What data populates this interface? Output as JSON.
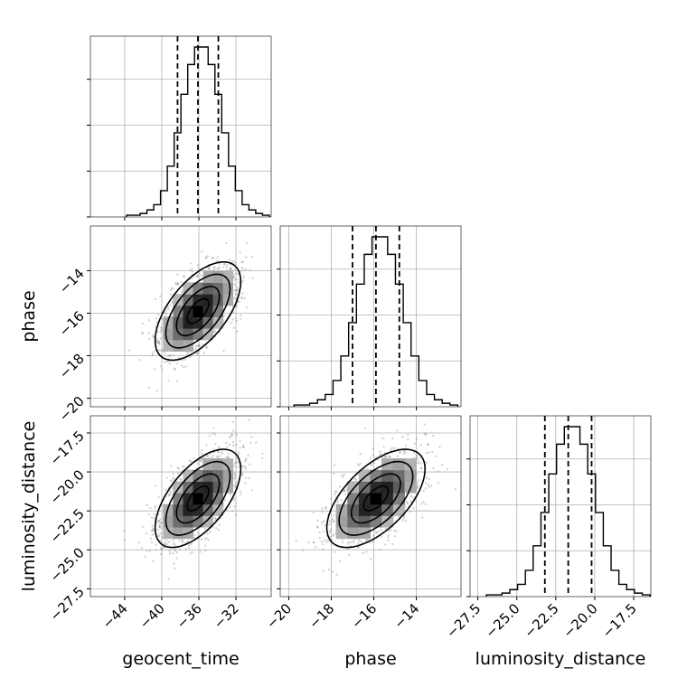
{
  "chart_data": {
    "type": "corner",
    "parameters": [
      "geocent_time",
      "phase",
      "luminosity_distance"
    ],
    "labels": {
      "x": [
        "geocent_time",
        "phase",
        "luminosity_distance"
      ],
      "y": [
        "phase",
        "luminosity_distance"
      ]
    },
    "ranges": {
      "geocent_time": [
        -47.7,
        -28.2
      ],
      "phase": [
        -20.4,
        -11.9
      ],
      "luminosity_distance": [
        -28.0,
        -16.4
      ]
    },
    "ticks": {
      "geocent_time": [
        -44,
        -40,
        -36,
        -32
      ],
      "phase": [
        -20,
        -18,
        -16,
        -14
      ],
      "luminosity_distance": [
        -27.5,
        -25.0,
        -22.5,
        -20.0,
        -17.5
      ]
    },
    "tick_labels": {
      "geocent_time": [
        "−44",
        "−40",
        "−36",
        "−32"
      ],
      "phase": [
        "−20",
        "−18",
        "−16",
        "−14"
      ],
      "luminosity_distance": [
        "−27.5",
        "−25.0",
        "−22.5",
        "−20.0",
        "−17.5"
      ]
    },
    "quantiles": {
      "geocent_time": [
        -38.3,
        -36.1,
        -33.9
      ],
      "phase": [
        -17.0,
        -15.9,
        -14.8
      ],
      "luminosity_distance": [
        -23.2,
        -21.7,
        -20.2
      ]
    },
    "histograms": {
      "geocent_time": [
        1,
        1,
        2,
        4,
        7,
        15,
        29,
        48,
        70,
        87,
        97,
        97,
        87,
        70,
        48,
        29,
        15,
        7,
        4,
        2,
        1
      ],
      "phase": [
        1,
        1,
        2,
        4,
        7,
        15,
        29,
        48,
        70,
        87,
        97,
        97,
        87,
        70,
        48,
        29,
        15,
        7,
        4,
        2,
        1
      ],
      "luminosity_distance": [
        1,
        1,
        2,
        4,
        7,
        15,
        29,
        48,
        70,
        87,
        97,
        97,
        87,
        70,
        48,
        29,
        15,
        7,
        4,
        2,
        1
      ]
    },
    "posterior": {
      "geocent_time": {
        "mean": -36.1,
        "std": 2.2
      },
      "phase": {
        "mean": -15.9,
        "std": 1.1
      },
      "luminosity_distance": {
        "mean": -21.7,
        "std": 1.5
      },
      "correlation": 0.6
    },
    "grid": true
  }
}
